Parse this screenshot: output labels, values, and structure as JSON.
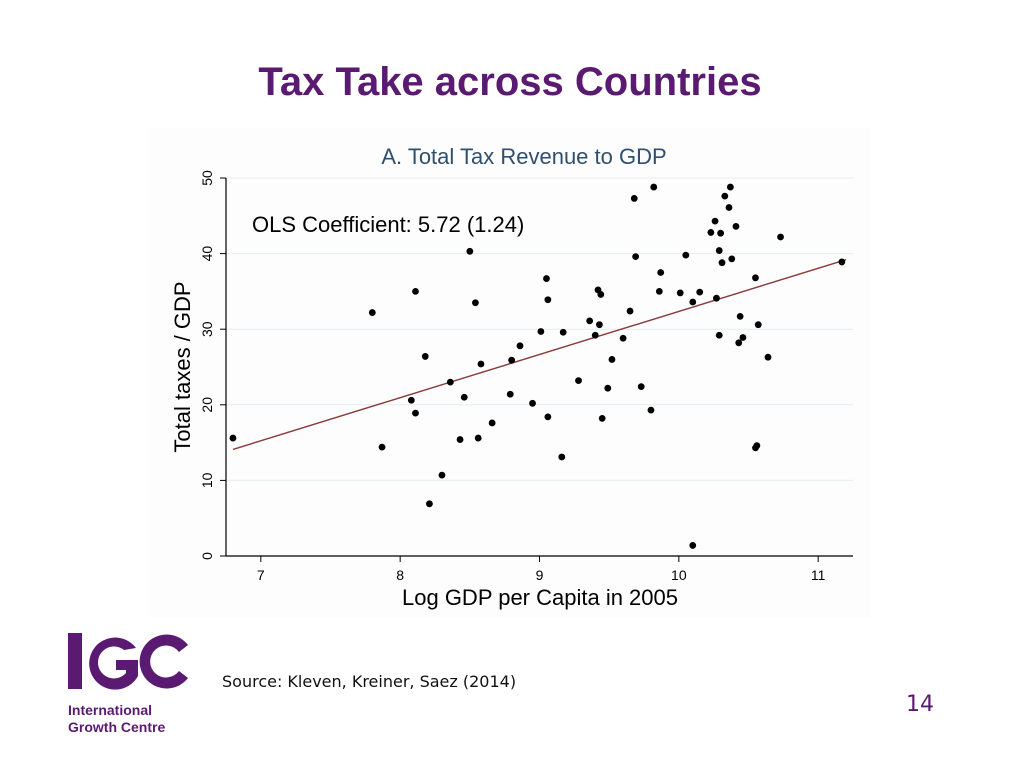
{
  "slide": {
    "title": "Tax Take across Countries",
    "source": "Source: Kleven, Kreiner, Saez (2014)",
    "page_number": "14"
  },
  "logo": {
    "mark": "IGC",
    "line1": "International",
    "line2": "Growth Centre",
    "color": "#5b1a72"
  },
  "colors": {
    "title": "#5b1a72",
    "fit_line": "#8b3a3a",
    "points": "#000000",
    "chart_title": "#2f4f6f"
  },
  "chart_data": {
    "type": "scatter",
    "title": "A. Total Tax Revenue to GDP",
    "xlabel": "Log GDP per Capita in 2005",
    "ylabel": "Total taxes / GDP",
    "annotation": "OLS Coefficient: 5.72 (1.24)",
    "xlim": [
      6.75,
      11.25
    ],
    "ylim": [
      0,
      50
    ],
    "xticks": [
      "7",
      "8",
      "9",
      "10",
      "11"
    ],
    "yticks": [
      "0",
      "10",
      "20",
      "30",
      "40",
      "50"
    ],
    "grid": true,
    "fit_line": {
      "x": [
        6.8,
        11.2
      ],
      "y": [
        14.1,
        39.2
      ]
    },
    "points": [
      [
        6.8,
        15.6
      ],
      [
        7.8,
        32.2
      ],
      [
        7.87,
        14.4
      ],
      [
        8.08,
        20.6
      ],
      [
        8.11,
        18.9
      ],
      [
        8.11,
        35.0
      ],
      [
        8.18,
        26.4
      ],
      [
        8.21,
        6.9
      ],
      [
        8.3,
        10.7
      ],
      [
        8.36,
        23.0
      ],
      [
        8.43,
        15.4
      ],
      [
        8.46,
        21.0
      ],
      [
        8.5,
        40.3
      ],
      [
        8.54,
        33.5
      ],
      [
        8.56,
        15.6
      ],
      [
        8.58,
        25.4
      ],
      [
        8.66,
        17.6
      ],
      [
        8.79,
        21.4
      ],
      [
        8.8,
        25.9
      ],
      [
        8.86,
        27.8
      ],
      [
        8.95,
        20.2
      ],
      [
        9.01,
        29.7
      ],
      [
        9.05,
        36.7
      ],
      [
        9.06,
        33.9
      ],
      [
        9.06,
        18.4
      ],
      [
        9.16,
        13.1
      ],
      [
        9.17,
        29.6
      ],
      [
        9.28,
        23.2
      ],
      [
        9.36,
        31.1
      ],
      [
        9.4,
        29.2
      ],
      [
        9.42,
        35.2
      ],
      [
        9.43,
        30.6
      ],
      [
        9.44,
        34.6
      ],
      [
        9.45,
        18.2
      ],
      [
        9.49,
        22.2
      ],
      [
        9.52,
        26.0
      ],
      [
        9.6,
        28.8
      ],
      [
        9.65,
        32.4
      ],
      [
        9.68,
        47.3
      ],
      [
        9.69,
        39.6
      ],
      [
        9.73,
        22.4
      ],
      [
        9.8,
        19.3
      ],
      [
        9.82,
        48.8
      ],
      [
        9.86,
        35.0
      ],
      [
        9.87,
        37.5
      ],
      [
        10.01,
        34.8
      ],
      [
        10.05,
        39.8
      ],
      [
        10.1,
        1.4
      ],
      [
        10.1,
        33.6
      ],
      [
        10.15,
        34.9
      ],
      [
        10.23,
        42.8
      ],
      [
        10.26,
        44.3
      ],
      [
        10.27,
        34.1
      ],
      [
        10.29,
        29.2
      ],
      [
        10.29,
        40.4
      ],
      [
        10.3,
        42.7
      ],
      [
        10.31,
        38.8
      ],
      [
        10.33,
        47.6
      ],
      [
        10.36,
        46.1
      ],
      [
        10.37,
        48.8
      ],
      [
        10.38,
        39.3
      ],
      [
        10.41,
        43.6
      ],
      [
        10.43,
        28.2
      ],
      [
        10.44,
        31.7
      ],
      [
        10.46,
        28.9
      ],
      [
        10.55,
        36.8
      ],
      [
        10.55,
        14.3
      ],
      [
        10.56,
        14.6
      ],
      [
        10.57,
        30.6
      ],
      [
        10.64,
        26.3
      ],
      [
        10.73,
        42.2
      ],
      [
        11.17,
        38.9
      ]
    ]
  }
}
